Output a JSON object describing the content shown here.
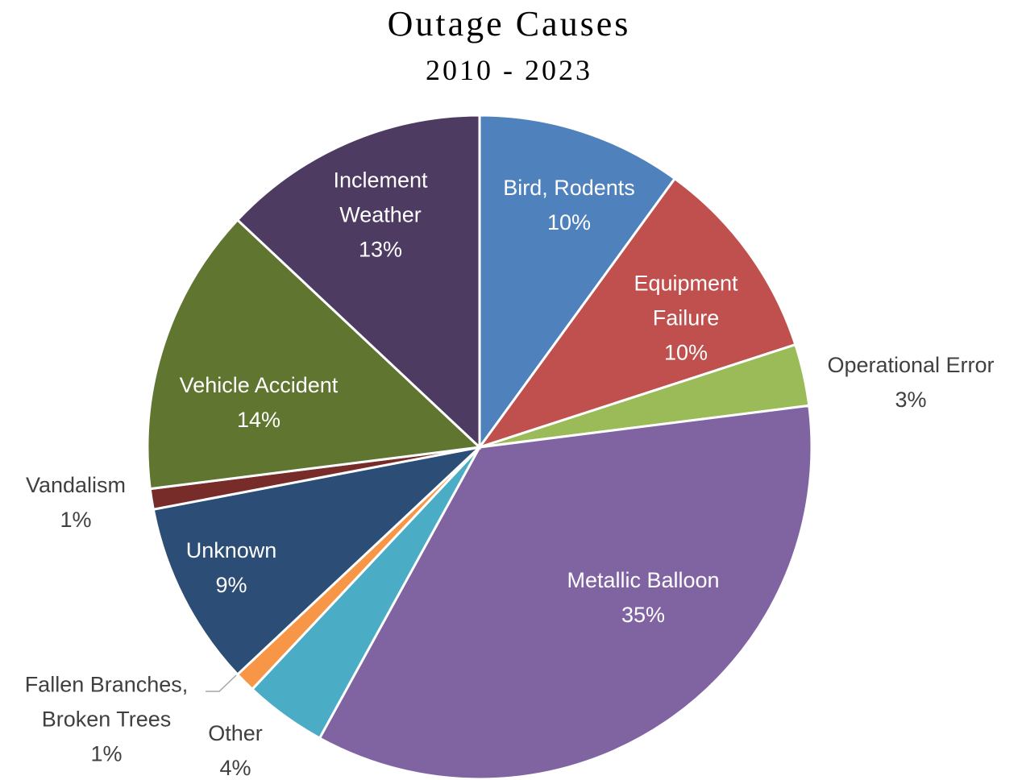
{
  "chart_data": {
    "type": "pie",
    "title": "Outage Causes",
    "subtitle": "2010 - 2023",
    "categories": [
      "Bird, Rodents",
      "Equipment Failure",
      "Operational Error",
      "Metallic Balloon",
      "Other",
      "Fallen Branches, Broken Trees",
      "Unknown",
      "Vandalism",
      "Vehicle Accident",
      "Inclement Weather"
    ],
    "values": [
      10,
      10,
      3,
      35,
      4,
      1,
      9,
      1,
      14,
      13
    ],
    "value_labels": [
      "10%",
      "10%",
      "3%",
      "35%",
      "4%",
      "1%",
      "9%",
      "1%",
      "14%",
      "13%"
    ],
    "colors": [
      "#4f81bd",
      "#c0504d",
      "#9bbb59",
      "#8064a2",
      "#4bacc6",
      "#f79646",
      "#2c4d75",
      "#772c2a",
      "#5f7530",
      "#4d3b62"
    ]
  }
}
